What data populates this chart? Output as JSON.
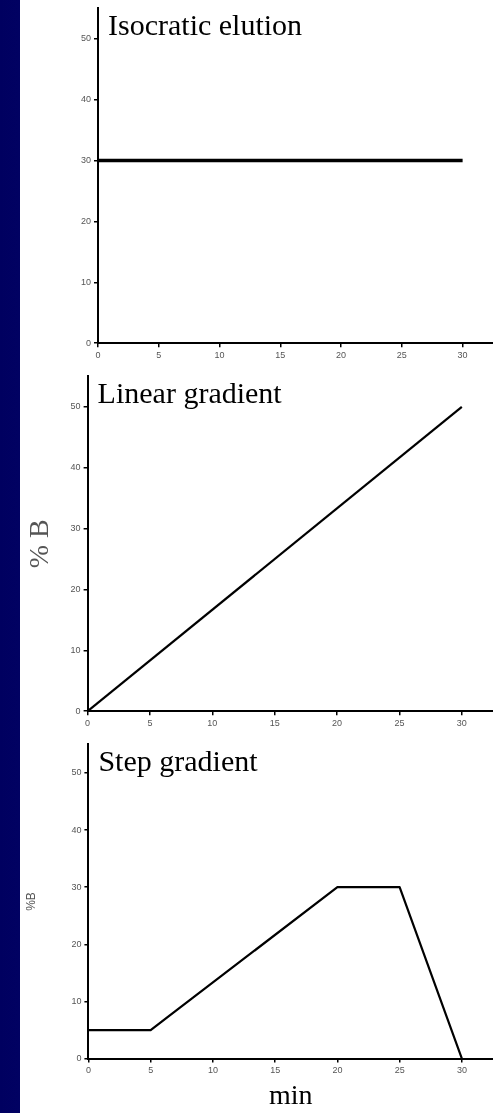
{
  "chart_data": [
    {
      "type": "line",
      "title": "Isocratic elution",
      "x": [
        0,
        30
      ],
      "series": [
        {
          "color": "#000000",
          "values": [
            30,
            30
          ]
        }
      ],
      "xlim": [
        0,
        32.5
      ],
      "ylim": [
        0,
        55
      ],
      "xticks": [
        0,
        5,
        10,
        15,
        20,
        25,
        30
      ],
      "yticks": [
        0,
        10,
        20,
        30,
        40,
        50
      ],
      "grid": false,
      "legend": false,
      "marker": "none",
      "line_style": "solid"
    },
    {
      "type": "line",
      "title": "Linear gradient",
      "ylabel": "% B",
      "x": [
        0,
        30
      ],
      "series": [
        {
          "color": "#000000",
          "values": [
            0,
            50
          ]
        }
      ],
      "xlim": [
        0,
        32.5
      ],
      "ylim": [
        0,
        55
      ],
      "xticks": [
        0,
        5,
        10,
        15,
        20,
        25,
        30
      ],
      "yticks": [
        0,
        10,
        20,
        30,
        40,
        50
      ],
      "grid": false,
      "legend": false,
      "marker": "none",
      "line_style": "solid"
    },
    {
      "type": "line",
      "title": "Step gradient",
      "ylabel": "%B",
      "xlabel": "min",
      "x": [
        0,
        5,
        20,
        25,
        30
      ],
      "series": [
        {
          "color": "#000000",
          "values": [
            5,
            5,
            30,
            30,
            0
          ]
        }
      ],
      "xlim": [
        0,
        32.5
      ],
      "ylim": [
        0,
        55
      ],
      "xticks": [
        0,
        5,
        10,
        15,
        20,
        25,
        30
      ],
      "yticks": [
        0,
        10,
        20,
        30,
        40,
        50
      ],
      "grid": false,
      "legend": false,
      "marker": "none",
      "line_style": "solid"
    }
  ]
}
